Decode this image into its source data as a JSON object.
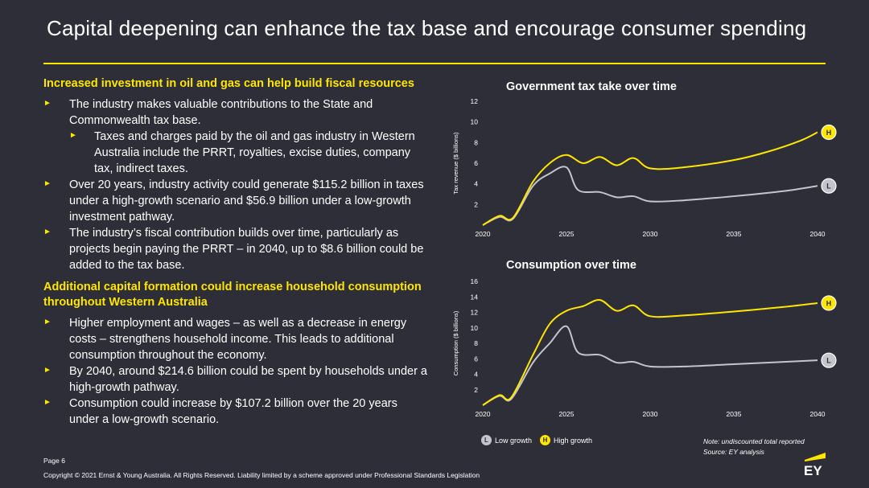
{
  "title": "Capital deepening can enhance the tax base and encourage consumer spending",
  "sections": [
    {
      "heading": "Increased investment in oil and gas can help build fiscal resources",
      "bullets": [
        {
          "level": 1,
          "text": "The industry makes valuable contributions to the State and Commonwealth tax base."
        },
        {
          "level": 2,
          "text": "Taxes and charges paid by the oil and gas industry in Western Australia include the PRRT, royalties, excise duties, company tax, indirect taxes."
        },
        {
          "level": 1,
          "text": "Over 20 years, industry activity could generate $115.2 billion in taxes under a high-growth scenario and $56.9 billion under a low-growth investment pathway."
        },
        {
          "level": 1,
          "text": "The industry’s fiscal contribution builds over time, particularly as projects begin paying the PRRT – in 2040, up to $8.6 billion could be added to the tax base."
        }
      ]
    },
    {
      "heading": "Additional capital formation could increase household consumption throughout Western Australia",
      "bullets": [
        {
          "level": 1,
          "text": "Higher employment and wages – as well as a decrease in energy costs – strengthens household income. This leads to additional consumption throughout the economy."
        },
        {
          "level": 1,
          "text": "By 2040, around $214.6 billion could be spent by households under a high-growth pathway."
        },
        {
          "level": 1,
          "text": "Consumption could increase by $107.2 billion over the 20 years under a low-growth scenario."
        }
      ]
    }
  ],
  "chart_data": [
    {
      "type": "line",
      "title": "Government tax take over time",
      "ylabel": "Tax revenue ($ billions)",
      "xlabel": "",
      "xlim": [
        2020,
        2040
      ],
      "ylim": [
        0,
        12
      ],
      "xticks": [
        2020,
        2025,
        2030,
        2035,
        2040
      ],
      "yticks": [
        2,
        4,
        6,
        8,
        10,
        12
      ],
      "grid": false,
      "series": [
        {
          "name": "High growth",
          "end_label": "H",
          "color": "#ffe600",
          "points": [
            [
              2020,
              0
            ],
            [
              2021,
              0.9
            ],
            [
              2021.8,
              0.7
            ],
            [
              2023,
              4.2
            ],
            [
              2024,
              6
            ],
            [
              2025,
              6.8
            ],
            [
              2026,
              6
            ],
            [
              2027,
              6.6
            ],
            [
              2028,
              5.8
            ],
            [
              2029,
              6.5
            ],
            [
              2030,
              5.5
            ],
            [
              2032,
              5.6
            ],
            [
              2035,
              6.3
            ],
            [
              2037,
              7.1
            ],
            [
              2039,
              8.2
            ],
            [
              2040,
              9
            ]
          ]
        },
        {
          "name": "Low growth",
          "end_label": "L",
          "color": "#c4c4cd",
          "points": [
            [
              2020,
              0
            ],
            [
              2021,
              0.8
            ],
            [
              2021.8,
              0.6
            ],
            [
              2023,
              3.8
            ],
            [
              2024,
              5
            ],
            [
              2025,
              5.6
            ],
            [
              2025.7,
              3.4
            ],
            [
              2027,
              3.2
            ],
            [
              2028,
              2.7
            ],
            [
              2029,
              2.8
            ],
            [
              2030,
              2.3
            ],
            [
              2032,
              2.4
            ],
            [
              2035,
              2.8
            ],
            [
              2038,
              3.3
            ],
            [
              2040,
              3.8
            ]
          ]
        }
      ]
    },
    {
      "type": "line",
      "title": "Consumption over time",
      "ylabel": "Consumption ($ billions)",
      "xlabel": "",
      "xlim": [
        2020,
        2040
      ],
      "ylim": [
        0,
        16
      ],
      "xticks": [
        2020,
        2025,
        2030,
        2035,
        2040
      ],
      "yticks": [
        2,
        4,
        6,
        8,
        10,
        12,
        14,
        16
      ],
      "grid": false,
      "series": [
        {
          "name": "High growth",
          "end_label": "H",
          "color": "#ffe600",
          "points": [
            [
              2020,
              0
            ],
            [
              2021,
              1.3
            ],
            [
              2021.7,
              1
            ],
            [
              2023,
              6.5
            ],
            [
              2024,
              10.5
            ],
            [
              2025,
              12.2
            ],
            [
              2026,
              12.8
            ],
            [
              2027,
              13.6
            ],
            [
              2028,
              12.2
            ],
            [
              2029,
              12.9
            ],
            [
              2030,
              11.5
            ],
            [
              2032,
              11.6
            ],
            [
              2035,
              12.1
            ],
            [
              2038,
              12.7
            ],
            [
              2040,
              13.2
            ]
          ]
        },
        {
          "name": "Low growth",
          "end_label": "L",
          "color": "#c4c4cd",
          "points": [
            [
              2020,
              0
            ],
            [
              2021,
              1.2
            ],
            [
              2021.7,
              0.8
            ],
            [
              2023,
              5.5
            ],
            [
              2024,
              8
            ],
            [
              2025,
              10.2
            ],
            [
              2025.7,
              6.8
            ],
            [
              2027,
              6.5
            ],
            [
              2028,
              5.5
            ],
            [
              2029,
              5.6
            ],
            [
              2030,
              5
            ],
            [
              2032,
              5
            ],
            [
              2035,
              5.3
            ],
            [
              2038,
              5.6
            ],
            [
              2040,
              5.8
            ]
          ]
        }
      ]
    }
  ],
  "legend": {
    "low": {
      "badge": "L",
      "label": "Low growth",
      "color": "#c4c4cd"
    },
    "high": {
      "badge": "H",
      "label": "High growth",
      "color": "#ffe600"
    }
  },
  "note": {
    "line1": "Note: undiscounted total reported",
    "line2": "Source: EY analysis"
  },
  "footer": {
    "page": "Page 6",
    "copyright": "Copyright © 2021 Ernst & Young Australia. All Rights Reserved. Liability limited by a scheme approved under Professional Standards Legislation"
  },
  "logo": {
    "text": "EY",
    "icon": "ey-logo-icon"
  },
  "colors": {
    "background": "#2e2e38",
    "accent": "#ffe600",
    "low_line": "#c4c4cd"
  }
}
